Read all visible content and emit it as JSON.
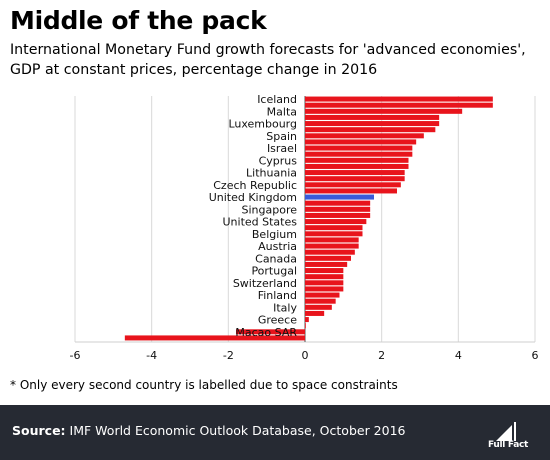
{
  "title": "Middle of the pack",
  "subtitle": "International Monetary Fund growth forecasts for 'advanced economies', GDP at constant prices, percentage change in 2016",
  "footnote": "* Only every second country is labelled due to space constraints",
  "source_label": "Source:",
  "source_text": "IMF World Economic Outlook Database, October 2016",
  "logo_text": "Full Fact",
  "colors": {
    "bar": "#e8141c",
    "highlight": "#3a5bd9",
    "footer_bg": "#262a33"
  },
  "chart_data": {
    "type": "bar",
    "orientation": "horizontal",
    "labels": [
      "Iceland",
      "",
      "Malta",
      "",
      "Luxembourg",
      "",
      "Spain",
      "",
      "Israel",
      "",
      "Cyprus",
      "",
      "Lithuania",
      "",
      "Czech Republic",
      "",
      "United Kingdom",
      "",
      "Singapore",
      "",
      "United States",
      "",
      "Belgium",
      "",
      "Austria",
      "",
      "Canada",
      "",
      "Portugal",
      "",
      "Switzerland",
      "",
      "Finland",
      "",
      "Italy",
      "",
      "Greece",
      "",
      "Macao SAR",
      ""
    ],
    "values": [
      4.9,
      4.9,
      4.1,
      3.5,
      3.5,
      3.4,
      3.1,
      2.9,
      2.8,
      2.8,
      2.7,
      2.7,
      2.6,
      2.6,
      2.5,
      2.4,
      1.8,
      1.7,
      1.7,
      1.7,
      1.6,
      1.5,
      1.5,
      1.4,
      1.4,
      1.3,
      1.2,
      1.1,
      1.0,
      1.0,
      1.0,
      1.0,
      0.9,
      0.8,
      0.7,
      0.5,
      0.1,
      0.0,
      -1.8,
      -4.7
    ],
    "highlight_index": 16,
    "xlim": [
      -6,
      6
    ],
    "xticks": [
      -6,
      -4,
      -2,
      0,
      2,
      4,
      6
    ],
    "grid": true
  }
}
